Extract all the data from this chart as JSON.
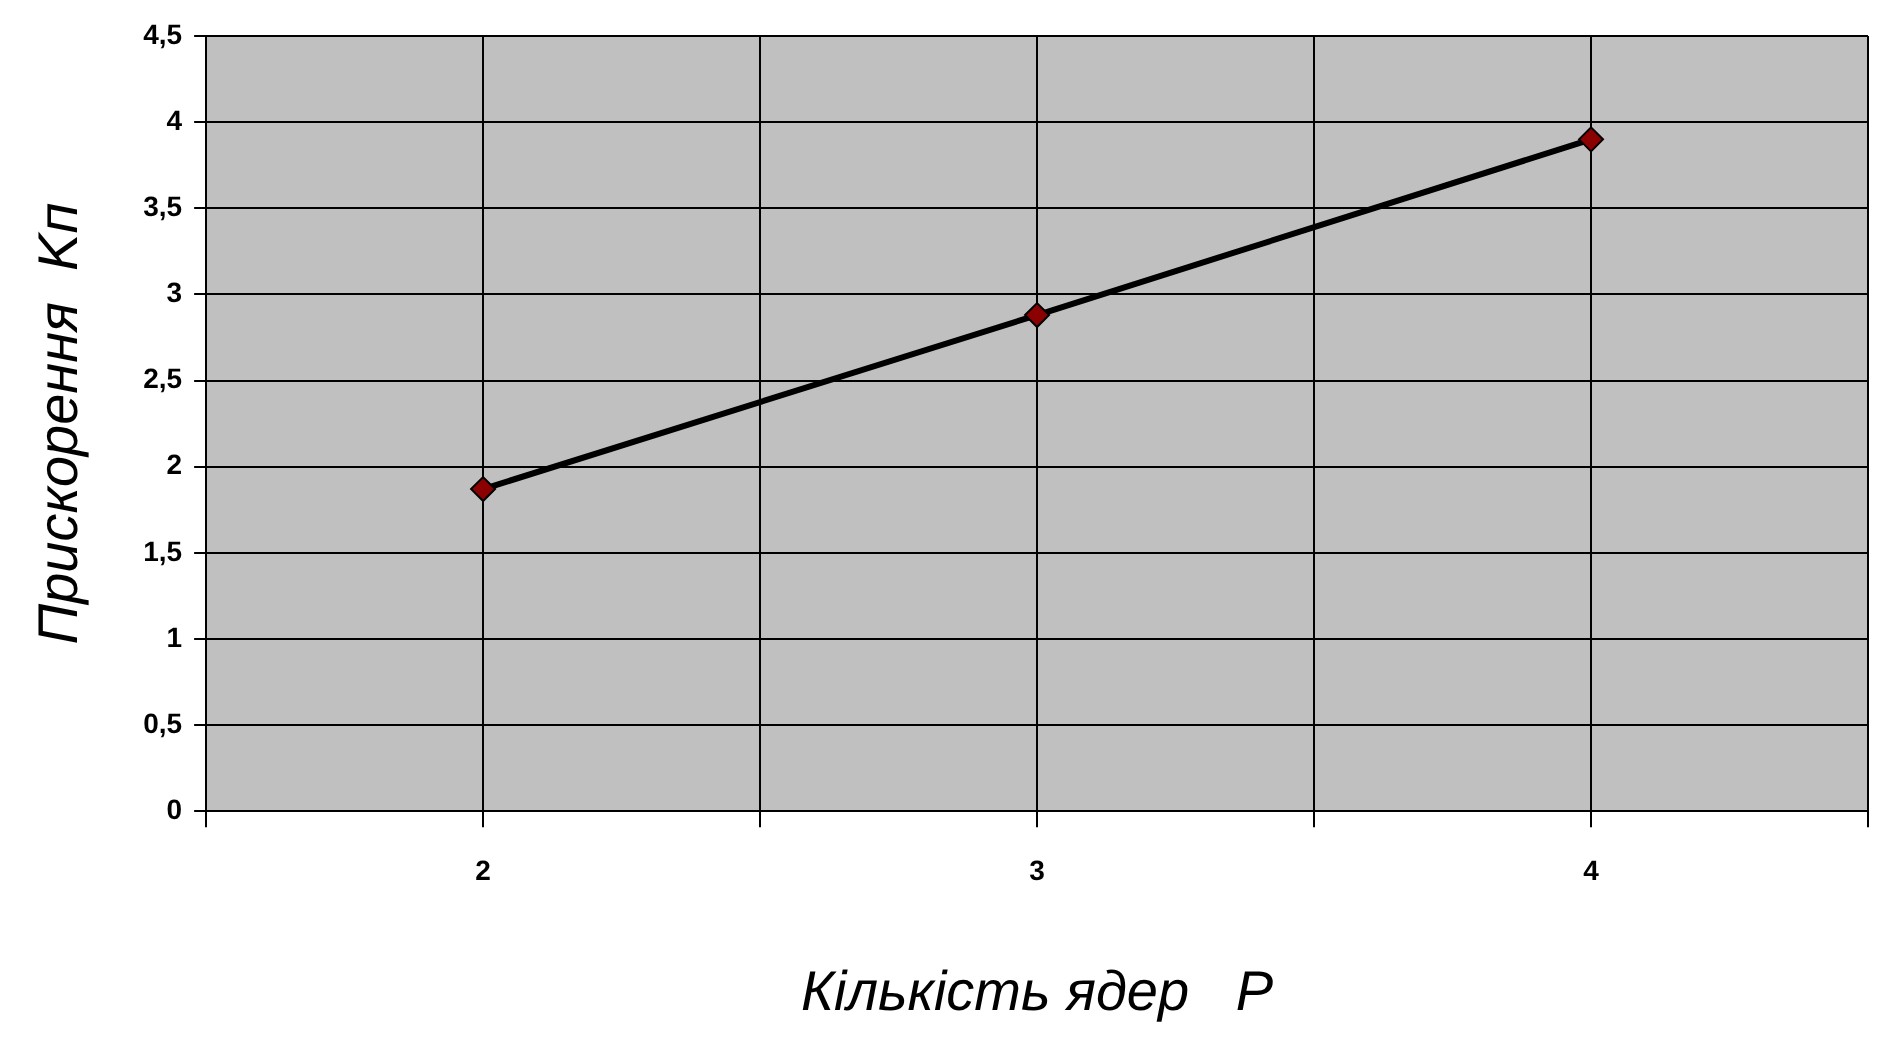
{
  "chart_data": {
    "type": "line",
    "xlabel": "Кількість ядер   P",
    "ylabel": "Прискорення  Kп",
    "x": [
      2,
      3,
      4
    ],
    "series": [
      {
        "color": "#8b0000",
        "values": [
          1.87,
          2.88,
          3.9
        ]
      }
    ],
    "xlim": [
      1.5,
      4.5
    ],
    "xticks": [
      {
        "value": 1.5,
        "label": null
      },
      2,
      {
        "value": 2.5,
        "label": null
      },
      3,
      {
        "value": 3.5,
        "label": null
      },
      4,
      {
        "value": 4.5,
        "label": null
      }
    ],
    "ylim": [
      0,
      4.5
    ],
    "yticks": [
      0,
      {
        "value": 0.5,
        "label": "0,5"
      },
      1,
      {
        "value": 1.5,
        "label": "1,5"
      },
      2,
      {
        "value": 2.5,
        "label": "2,5"
      },
      3,
      {
        "value": 3.5,
        "label": "3,5"
      },
      4,
      {
        "value": 4.5,
        "label": "4,5"
      }
    ],
    "grid": true,
    "marker": "diamond",
    "line_style": "solid"
  }
}
